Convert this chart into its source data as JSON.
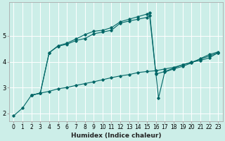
{
  "xlabel": "Humidex (Indice chaleur)",
  "bg_color": "#cceee8",
  "grid_color": "#ffffff",
  "line_color": "#006666",
  "xlim": [
    -0.5,
    23.5
  ],
  "ylim": [
    1.7,
    6.3
  ],
  "curve1_x": [
    0,
    1,
    2,
    3,
    4,
    5,
    6,
    7,
    8,
    9,
    10,
    11,
    12,
    13,
    14,
    15,
    16,
    17,
    18,
    19,
    20,
    21,
    22,
    23
  ],
  "curve1_y": [
    1.9,
    2.2,
    2.7,
    2.78,
    2.85,
    2.95,
    3.0,
    3.08,
    3.15,
    3.22,
    3.3,
    3.38,
    3.45,
    3.5,
    3.58,
    3.62,
    3.65,
    3.72,
    3.78,
    3.88,
    3.98,
    4.1,
    4.22,
    4.35
  ],
  "curve2_x": [
    2,
    3,
    4,
    5,
    6,
    7,
    8,
    9,
    10,
    11,
    12,
    13,
    14,
    15,
    15.3,
    16,
    17,
    18,
    19,
    20,
    21,
    22,
    23
  ],
  "curve2_y": [
    2.7,
    2.78,
    4.35,
    4.6,
    4.68,
    4.82,
    4.9,
    5.08,
    5.15,
    5.22,
    5.5,
    5.58,
    5.65,
    5.72,
    5.78,
    3.52,
    3.62,
    3.75,
    3.88,
    3.98,
    4.05,
    4.15,
    4.35
  ],
  "curve3_x": [
    2,
    3,
    4,
    5,
    6,
    7,
    8,
    9,
    10,
    11,
    12,
    13,
    14,
    15,
    15.3,
    16,
    16.3,
    17,
    18,
    19,
    20,
    21,
    22,
    23
  ],
  "curve3_y": [
    2.7,
    2.78,
    4.35,
    4.62,
    4.72,
    4.88,
    5.05,
    5.18,
    5.22,
    5.32,
    5.55,
    5.65,
    5.75,
    5.85,
    5.9,
    3.55,
    2.6,
    3.6,
    3.72,
    3.82,
    3.95,
    4.12,
    4.28,
    4.38
  ],
  "xticks": [
    0,
    1,
    2,
    3,
    4,
    5,
    6,
    7,
    8,
    9,
    10,
    11,
    12,
    13,
    14,
    15,
    16,
    17,
    18,
    19,
    20,
    21,
    22,
    23
  ],
  "yticks": [
    2,
    3,
    4,
    5
  ],
  "tick_fontsize": 5.5,
  "xlabel_fontsize": 6.5
}
